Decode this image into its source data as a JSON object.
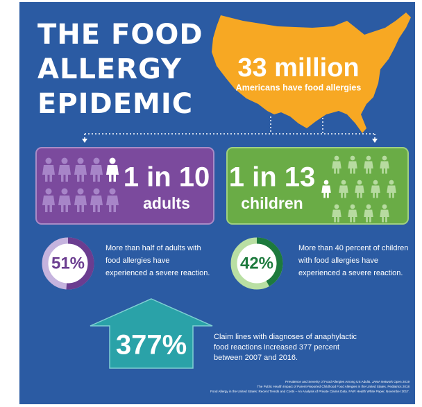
{
  "title": [
    "THE FOOD",
    "ALLERGY",
    "EPIDEMIC"
  ],
  "headline": {
    "number": "33 million",
    "caption": "Americans have food allergies"
  },
  "groups": [
    {
      "ratio": "1 in 10",
      "who": "adults"
    },
    {
      "ratio": "1 in 13",
      "who": "children"
    }
  ],
  "donuts": [
    {
      "value": 51,
      "label": "51%",
      "text": [
        "More than half of adults with",
        "food allergies have",
        "experienced a severe reaction."
      ]
    },
    {
      "value": 42,
      "label": "42%",
      "text": [
        "More than 40 percent of children",
        "with food allergies have",
        "experienced a severe reaction."
      ]
    }
  ],
  "increase": {
    "label": "377%",
    "text": [
      "Claim lines with diagnoses of anaphylactic",
      "food reactions increased 377 percent",
      "between 2007 and 2016."
    ]
  },
  "sources": [
    "Prevalence and Severity of Food Allergies Among US Adults. JAMA Network Open 2019",
    "The Public Health Impact of Parent-Reported Childhood Food Allergies in the United States. Pediatrics 2018",
    "Food Allergy in the United States: Recent Trends and Costs – An Analysis of Private Claims Data. FAIR Health White Paper, November 2017."
  ]
}
